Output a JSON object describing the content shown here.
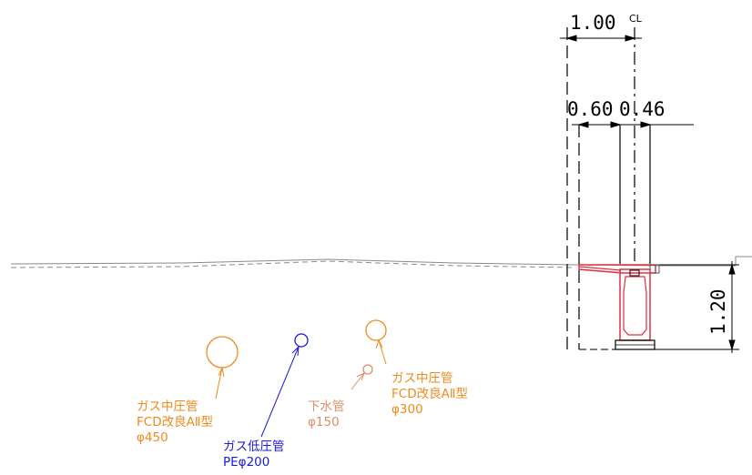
{
  "dimensions": {
    "total_width": "1.00",
    "centerline_mark": "CL",
    "left_width": "0.60",
    "right_width": "0.46",
    "depth": "1.20"
  },
  "pipes": [
    {
      "id": "gas-mp-450",
      "color": "#f08a1c",
      "lines": [
        "ガス中圧管",
        "FCD改良AⅡ型",
        "φ450"
      ]
    },
    {
      "id": "gas-lp-200",
      "color": "#1a1ad6",
      "lines": [
        "ガス低圧管",
        "PEφ200"
      ]
    },
    {
      "id": "sewer-150",
      "color": "#d9906a",
      "lines": [
        "下水管",
        "φ150"
      ]
    },
    {
      "id": "gas-mp-300",
      "color": "#f08a1c",
      "lines": [
        "ガス中圧管",
        "FCD改良AⅡ型",
        "φ300"
      ]
    }
  ],
  "colors": {
    "ground_line": "#8a8a8a",
    "dimension": "#000000",
    "structure_red": "#e03040",
    "structure_outline": "#000000"
  }
}
